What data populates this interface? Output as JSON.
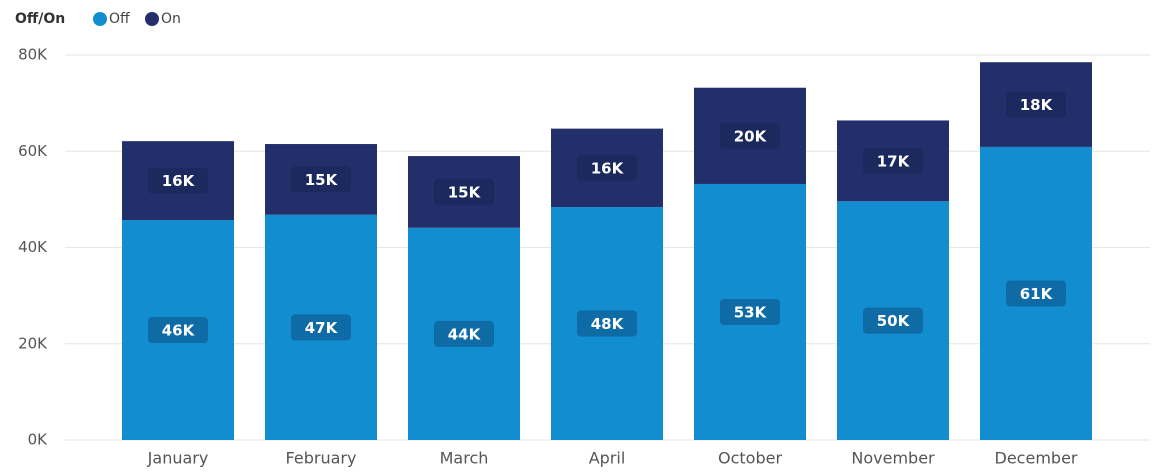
{
  "chart_data": {
    "type": "stacked_bar",
    "legend_title": "Off/On",
    "categories": [
      "January",
      "February",
      "March",
      "April",
      "October",
      "November",
      "December"
    ],
    "series": [
      {
        "name": "Off",
        "color": "#118dd0",
        "values": [
          45700,
          46800,
          44100,
          48400,
          53200,
          49600,
          60900
        ],
        "value_labels": [
          "46K",
          "47K",
          "44K",
          "48K",
          "53K",
          "50K",
          "61K"
        ]
      },
      {
        "name": "On",
        "color": "#232f6b",
        "values": [
          16400,
          14700,
          14900,
          16300,
          20000,
          16800,
          17600
        ],
        "value_labels": [
          "16K",
          "15K",
          "15K",
          "16K",
          "20K",
          "17K",
          "18K"
        ]
      }
    ],
    "ylim": [
      0,
      80000
    ],
    "yticks": [
      {
        "value": 0,
        "label": "0K"
      },
      {
        "value": 20000,
        "label": "20K"
      },
      {
        "value": 40000,
        "label": "40K"
      },
      {
        "value": 60000,
        "label": "60K"
      },
      {
        "value": 80000,
        "label": "80K"
      }
    ],
    "grid": true,
    "legend": "top-left"
  }
}
